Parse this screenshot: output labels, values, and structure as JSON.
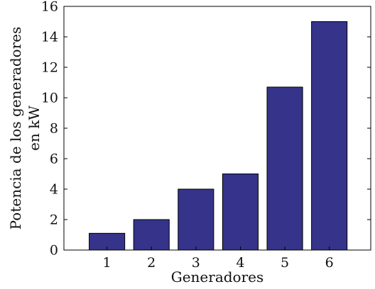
{
  "chart_data": {
    "type": "bar",
    "title": "",
    "xlabel": "Generadores",
    "ylabel_lines": [
      "Potencia de los generadores",
      "en kW"
    ],
    "categories": [
      "1",
      "2",
      "3",
      "4",
      "5",
      "6"
    ],
    "values": [
      1.1,
      2.0,
      4.0,
      5.0,
      10.7,
      15.0
    ],
    "ylim": [
      0,
      16
    ],
    "yticks": [
      0,
      2,
      4,
      6,
      8,
      10,
      12,
      14,
      16
    ],
    "grid": false,
    "bar_color": "#35338a",
    "bar_edge_color": "#000000"
  }
}
